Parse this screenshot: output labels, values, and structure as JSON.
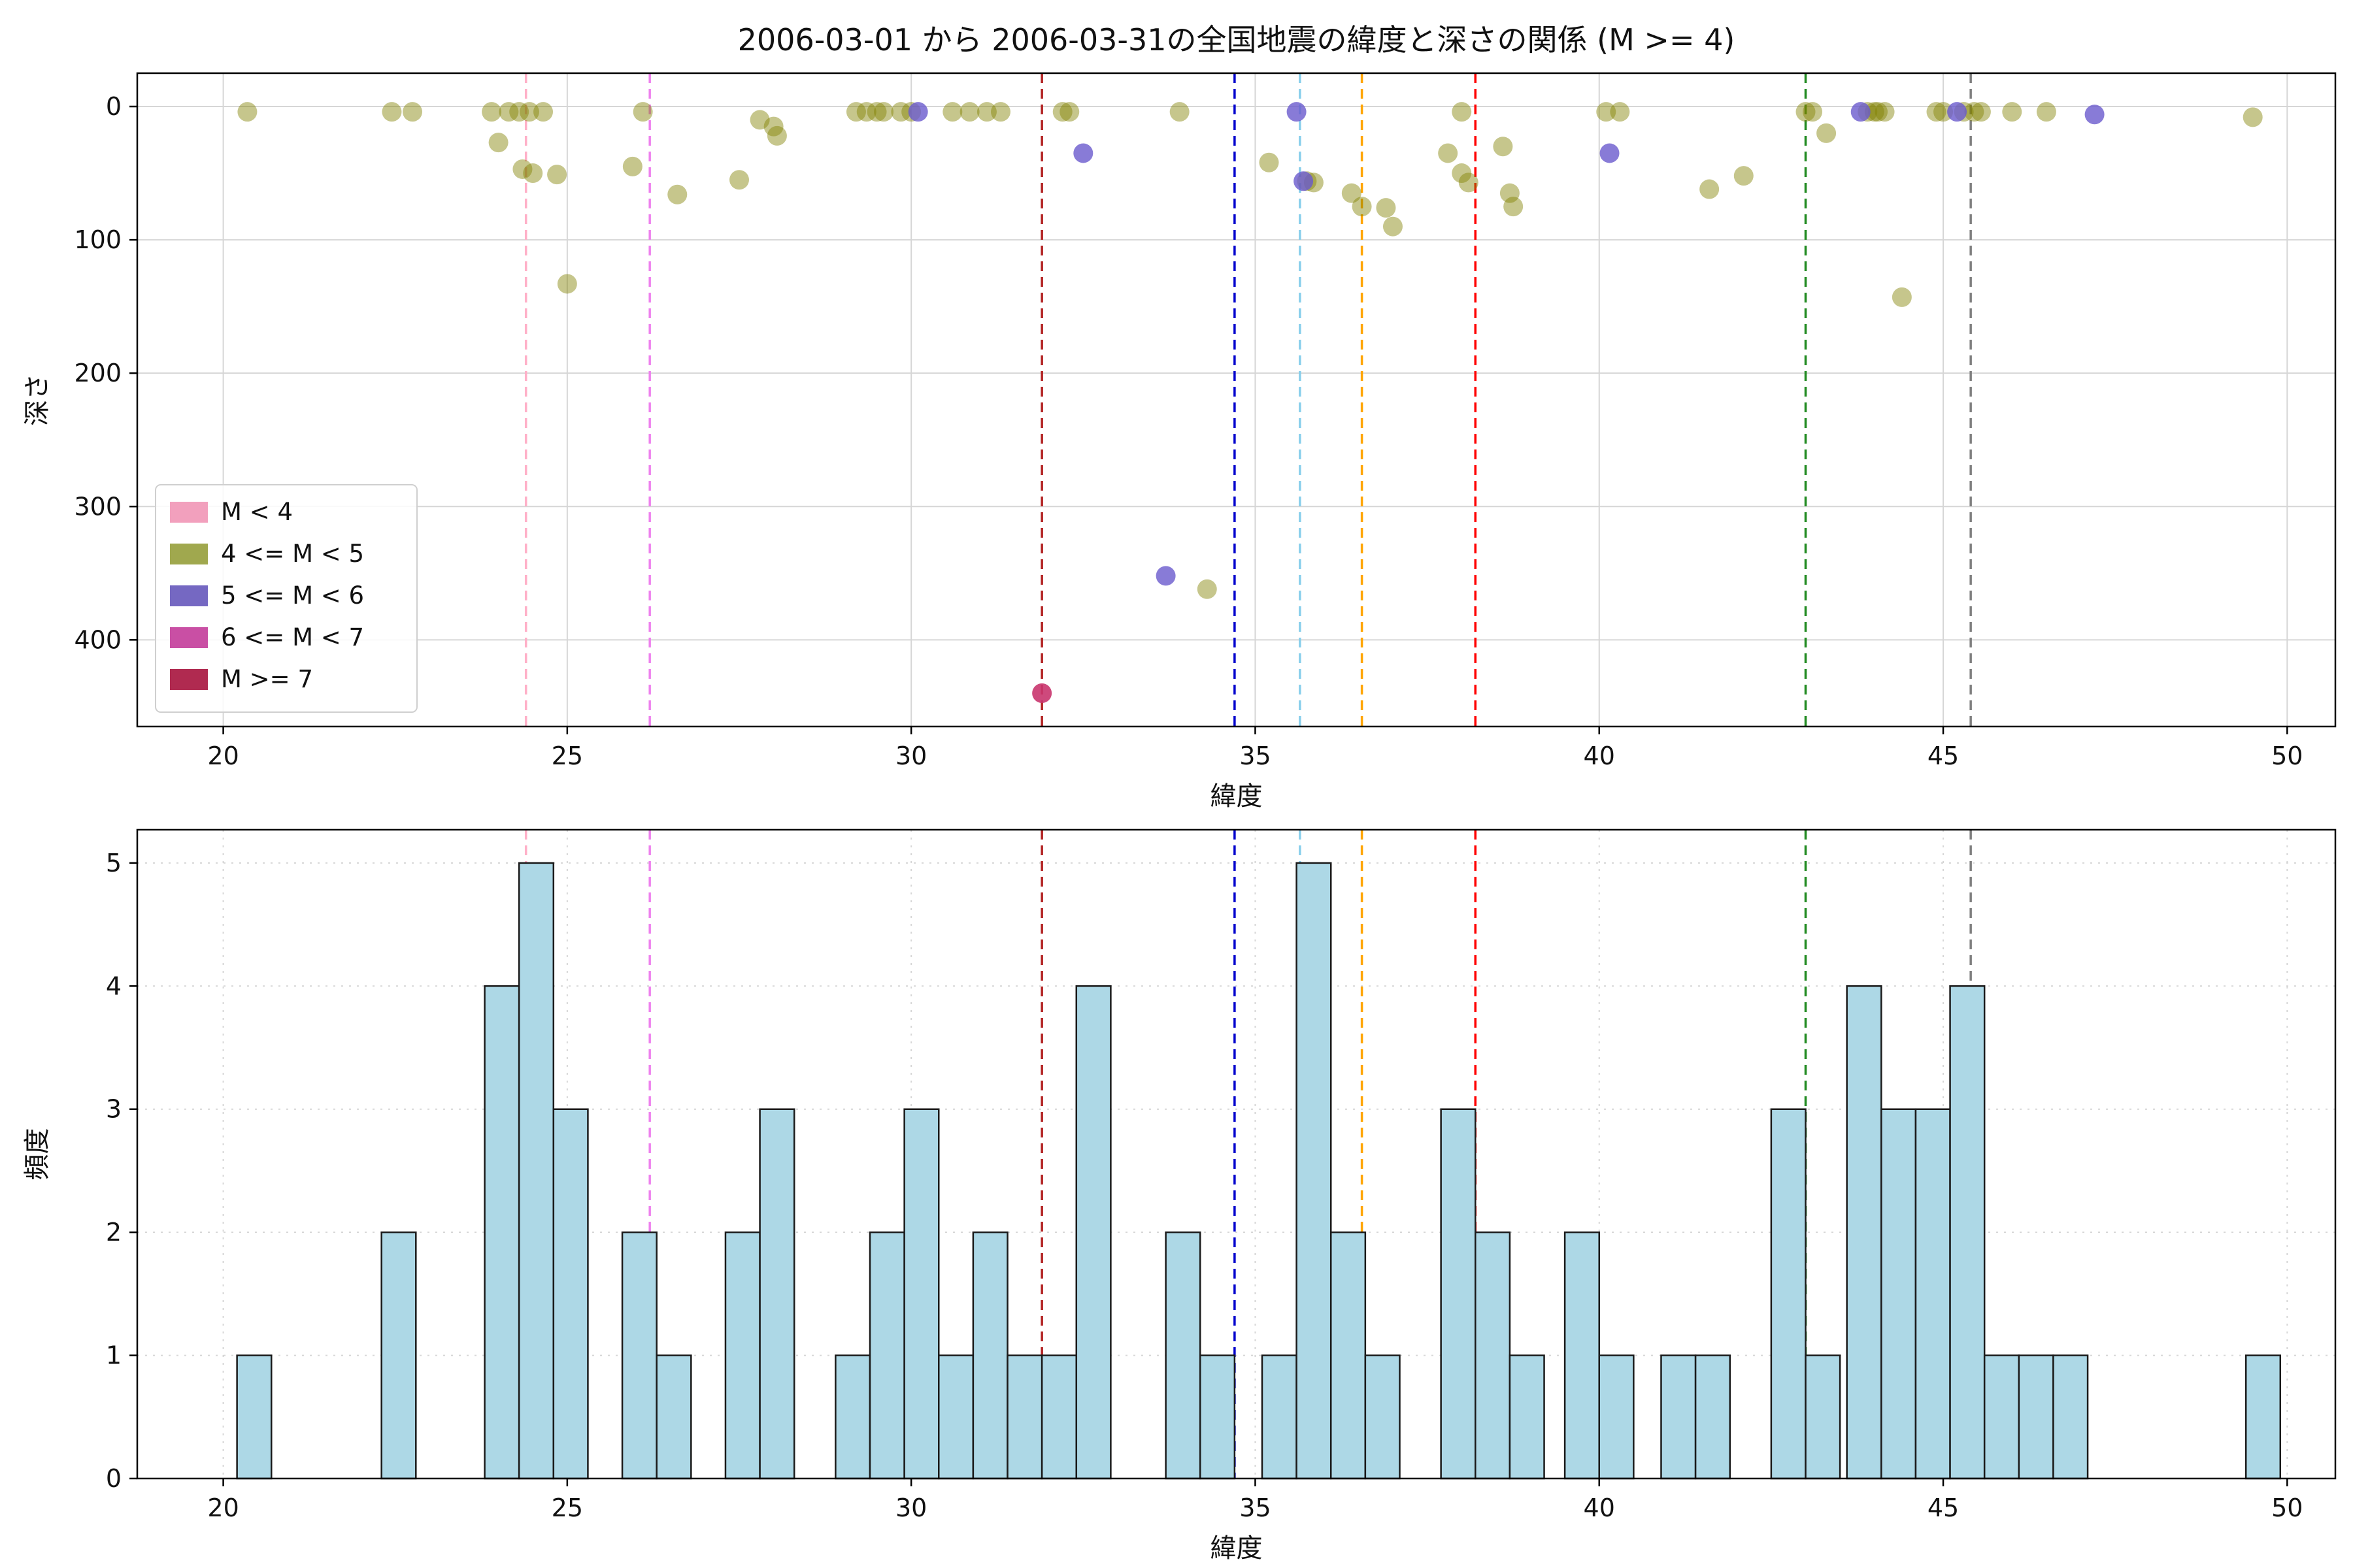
{
  "figure": {
    "title": "2006-03-01 から 2006-03-31の全国地震の緯度と深さの関係 (M >= 4)",
    "background": "#ffffff"
  },
  "chart_data": [
    {
      "type": "scatter",
      "title": "2006-03-01 から 2006-03-31の全国地震の緯度と深さの関係 (M >= 4)",
      "xlabel": "緯度",
      "ylabel": "深さ",
      "xlim": [
        18.75,
        50.7
      ],
      "ylim": [
        -25,
        465
      ],
      "y_inverted": true,
      "xticks": [
        20,
        25,
        30,
        35,
        40,
        45,
        50
      ],
      "yticks": [
        0,
        100,
        200,
        300,
        400
      ],
      "grid": true,
      "grid_dash": "",
      "legend": {
        "position": "lower-left",
        "entries": [
          {
            "label": "M < 4",
            "color": "#f2a0bd"
          },
          {
            "label": "4 <= M < 5",
            "color": "#a0a84e"
          },
          {
            "label": "5 <= M < 6",
            "color": "#7568c2"
          },
          {
            "label": "6 <= M < 7",
            "color": "#c94fa4"
          },
          {
            "label": "M >= 7",
            "color": "#b02a50"
          }
        ]
      },
      "vlines": [
        {
          "x": 24.4,
          "color": "#ffb0c8"
        },
        {
          "x": 26.2,
          "color": "#ee82ee"
        },
        {
          "x": 31.9,
          "color": "#b22222"
        },
        {
          "x": 34.7,
          "color": "#0000cd"
        },
        {
          "x": 35.65,
          "color": "#87ceeb"
        },
        {
          "x": 36.55,
          "color": "#ffa500"
        },
        {
          "x": 38.2,
          "color": "#ff0000"
        },
        {
          "x": 43.0,
          "color": "#228b22"
        },
        {
          "x": 45.4,
          "color": "#7f7f7f"
        }
      ],
      "series": [
        {
          "name": "4 <= M < 5",
          "color": "#808000",
          "alpha": 0.45,
          "points": [
            [
              20.35,
              4
            ],
            [
              22.45,
              4
            ],
            [
              22.75,
              4
            ],
            [
              23.9,
              4
            ],
            [
              24.0,
              27
            ],
            [
              24.15,
              4
            ],
            [
              24.3,
              4
            ],
            [
              24.45,
              4
            ],
            [
              24.35,
              47
            ],
            [
              24.5,
              50
            ],
            [
              24.65,
              4
            ],
            [
              24.85,
              51
            ],
            [
              25.0,
              133
            ],
            [
              25.95,
              45
            ],
            [
              26.1,
              4
            ],
            [
              26.6,
              66
            ],
            [
              27.5,
              55
            ],
            [
              27.8,
              10
            ],
            [
              28.0,
              15
            ],
            [
              28.05,
              22
            ],
            [
              29.2,
              4
            ],
            [
              29.35,
              4
            ],
            [
              29.5,
              4
            ],
            [
              29.6,
              4
            ],
            [
              29.85,
              4
            ],
            [
              30.0,
              4
            ],
            [
              30.6,
              4
            ],
            [
              30.85,
              4
            ],
            [
              31.1,
              4
            ],
            [
              31.3,
              4
            ],
            [
              32.2,
              4
            ],
            [
              32.3,
              4
            ],
            [
              33.9,
              4
            ],
            [
              34.3,
              362
            ],
            [
              35.2,
              42
            ],
            [
              35.75,
              56
            ],
            [
              35.85,
              57
            ],
            [
              36.4,
              65
            ],
            [
              36.55,
              75
            ],
            [
              36.9,
              76
            ],
            [
              37.0,
              90
            ],
            [
              37.8,
              35
            ],
            [
              38.0,
              4
            ],
            [
              38.0,
              50
            ],
            [
              38.1,
              57
            ],
            [
              38.6,
              30
            ],
            [
              38.7,
              65
            ],
            [
              38.75,
              75
            ],
            [
              40.1,
              4
            ],
            [
              40.3,
              4
            ],
            [
              41.6,
              62
            ],
            [
              42.1,
              52
            ],
            [
              43.0,
              4
            ],
            [
              43.1,
              4
            ],
            [
              43.3,
              20
            ],
            [
              43.9,
              4
            ],
            [
              44.0,
              4
            ],
            [
              44.05,
              4
            ],
            [
              44.15,
              4
            ],
            [
              44.4,
              143
            ],
            [
              44.9,
              4
            ],
            [
              45.0,
              4
            ],
            [
              45.3,
              4
            ],
            [
              45.45,
              4
            ],
            [
              45.55,
              4
            ],
            [
              46.0,
              4
            ],
            [
              46.5,
              4
            ],
            [
              49.5,
              8
            ]
          ]
        },
        {
          "name": "5 <= M < 6",
          "color": "#6a5acd",
          "alpha": 0.8,
          "points": [
            [
              30.1,
              4
            ],
            [
              32.5,
              35
            ],
            [
              33.7,
              352
            ],
            [
              35.6,
              4
            ],
            [
              35.7,
              56
            ],
            [
              40.15,
              35
            ],
            [
              43.8,
              4
            ],
            [
              45.2,
              4
            ],
            [
              47.2,
              6
            ]
          ]
        },
        {
          "name": "M >= 7",
          "color": "#c9356e",
          "alpha": 0.9,
          "points": [
            [
              31.9,
              440
            ]
          ]
        }
      ]
    },
    {
      "type": "histogram",
      "xlabel": "緯度",
      "ylabel": "頻度",
      "xlim": [
        18.75,
        50.7
      ],
      "ylim": [
        0,
        5.27
      ],
      "y_inverted": false,
      "xticks": [
        20,
        25,
        30,
        35,
        40,
        45,
        50
      ],
      "yticks": [
        0,
        1,
        2,
        3,
        4,
        5
      ],
      "grid": true,
      "grid_dash": "3 9",
      "bar_color": "#add8e6",
      "bar_edge": "#1a1a1a",
      "bin_width": 0.5,
      "bars": [
        [
          20.2,
          1
        ],
        [
          22.3,
          2
        ],
        [
          23.8,
          4
        ],
        [
          24.3,
          5
        ],
        [
          24.8,
          3
        ],
        [
          25.8,
          2
        ],
        [
          26.3,
          1
        ],
        [
          27.3,
          2
        ],
        [
          27.8,
          3
        ],
        [
          28.9,
          1
        ],
        [
          29.4,
          2
        ],
        [
          29.9,
          3
        ],
        [
          30.4,
          1
        ],
        [
          30.9,
          2
        ],
        [
          31.4,
          1
        ],
        [
          31.9,
          1
        ],
        [
          32.4,
          4
        ],
        [
          33.7,
          2
        ],
        [
          34.2,
          1
        ],
        [
          35.1,
          1
        ],
        [
          35.6,
          5
        ],
        [
          36.1,
          2
        ],
        [
          36.6,
          1
        ],
        [
          37.7,
          3
        ],
        [
          38.2,
          2
        ],
        [
          38.7,
          1
        ],
        [
          39.5,
          2
        ],
        [
          40.0,
          1
        ],
        [
          40.9,
          1
        ],
        [
          41.4,
          1
        ],
        [
          42.5,
          3
        ],
        [
          43.0,
          1
        ],
        [
          43.6,
          4
        ],
        [
          44.1,
          3
        ],
        [
          44.6,
          3
        ],
        [
          45.1,
          4
        ],
        [
          45.6,
          1
        ],
        [
          46.1,
          1
        ],
        [
          46.6,
          1
        ],
        [
          49.4,
          1
        ]
      ],
      "vlines": [
        {
          "x": 24.4,
          "color": "#ffb0c8"
        },
        {
          "x": 26.2,
          "color": "#ee82ee"
        },
        {
          "x": 31.9,
          "color": "#b22222"
        },
        {
          "x": 34.7,
          "color": "#0000cd"
        },
        {
          "x": 35.65,
          "color": "#87ceeb"
        },
        {
          "x": 36.55,
          "color": "#ffa500"
        },
        {
          "x": 38.2,
          "color": "#ff0000"
        },
        {
          "x": 43.0,
          "color": "#228b22"
        },
        {
          "x": 45.4,
          "color": "#7f7f7f"
        }
      ]
    }
  ]
}
